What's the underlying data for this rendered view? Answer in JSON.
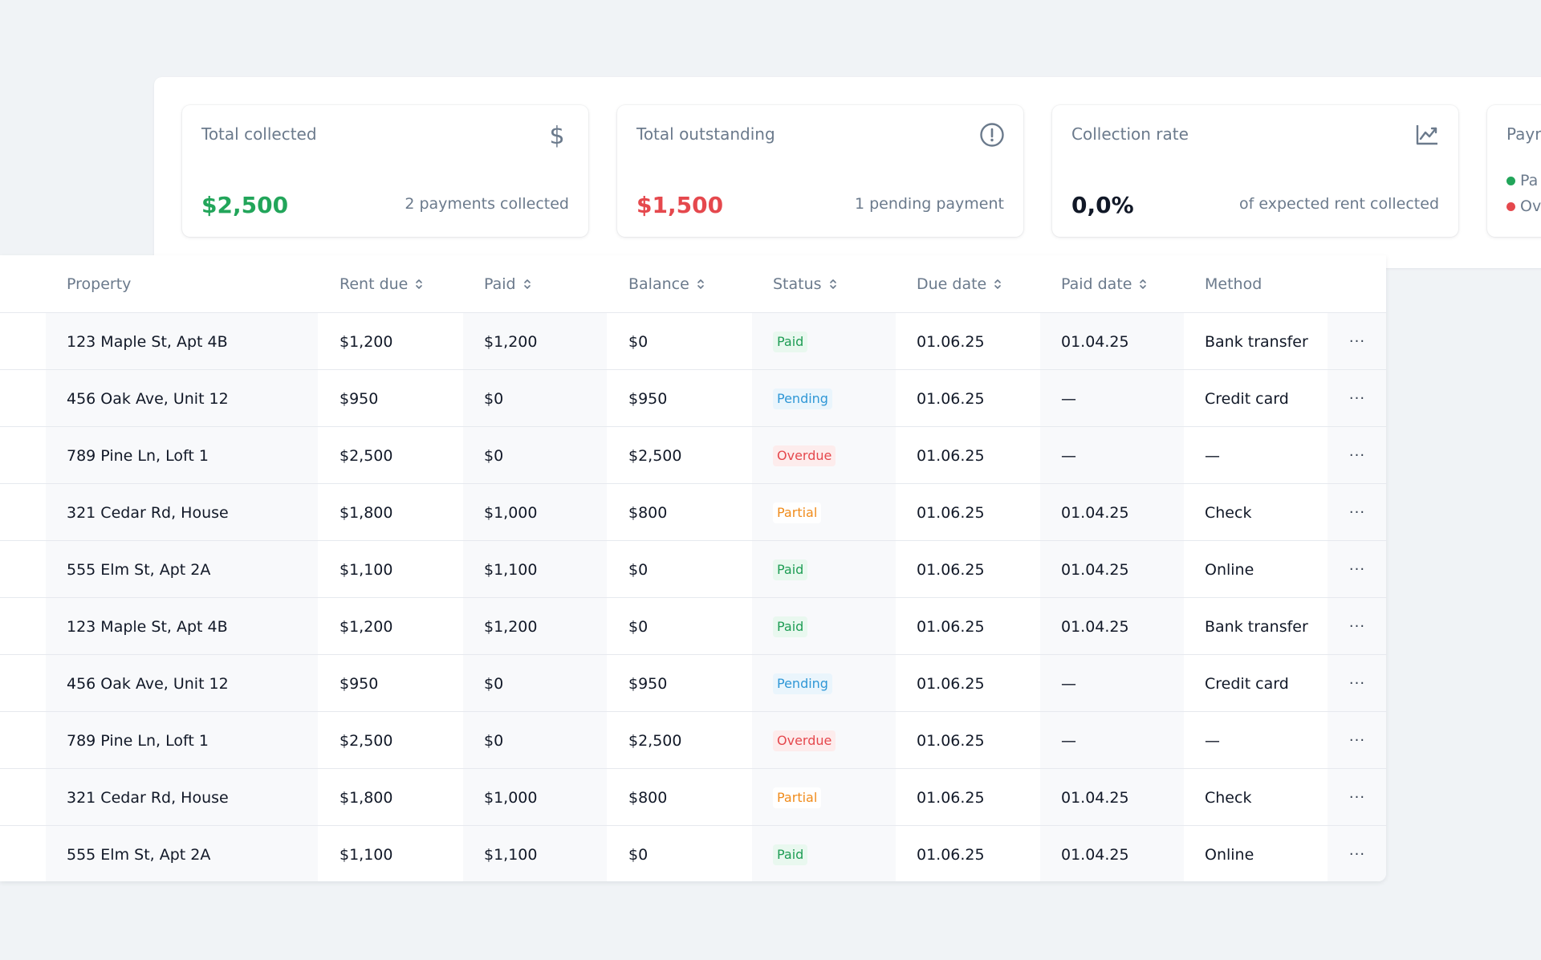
{
  "colors": {
    "green": "#22a55a",
    "red": "#e5484d",
    "blue": "#2f97d6",
    "orange": "#f08c1c",
    "muted": "#6b7a8c"
  },
  "summary": {
    "cards": [
      {
        "title": "Total collected",
        "icon": "dollar-icon",
        "value": "$2,500",
        "value_color": "#22a55a",
        "subtitle": "2 payments collected"
      },
      {
        "title": "Total outstanding",
        "icon": "alert-circle-icon",
        "value": "$1,500",
        "value_color": "#e5484d",
        "subtitle": "1 pending payment"
      },
      {
        "title": "Collection rate",
        "icon": "trend-chart-icon",
        "value": "0,0%",
        "value_color": "#111827",
        "subtitle": "of expected rent collected"
      }
    ],
    "partial_card": {
      "title": "Payr",
      "legend": [
        {
          "label": "Pa",
          "color": "#22a55a"
        },
        {
          "label": "Ov",
          "color": "#e5484d"
        }
      ]
    }
  },
  "table": {
    "headers": [
      "Property",
      "Rent due",
      "Paid",
      "Balance",
      "Status",
      "Due date",
      "Paid date",
      "Method"
    ],
    "sortable": [
      false,
      true,
      true,
      true,
      true,
      true,
      true,
      false
    ],
    "more_label": "···",
    "rows": [
      {
        "property": "123 Maple St, Apt 4B",
        "rent_due": "$1,200",
        "paid": "$1,200",
        "balance": "$0",
        "status": "Paid",
        "status_type": "paid",
        "due_date": "01.06.25",
        "paid_date": "01.04.25",
        "method": "Bank transfer"
      },
      {
        "property": "456 Oak Ave, Unit 12",
        "rent_due": "$950",
        "paid": "$0",
        "balance": "$950",
        "status": "Pending",
        "status_type": "pending",
        "due_date": "01.06.25",
        "paid_date": "—",
        "method": "Credit card"
      },
      {
        "property": "789 Pine Ln, Loft 1",
        "rent_due": "$2,500",
        "paid": "$0",
        "balance": "$2,500",
        "status": "Overdue",
        "status_type": "overdue",
        "due_date": "01.06.25",
        "paid_date": "—",
        "method": "—"
      },
      {
        "property": "321 Cedar Rd, House",
        "rent_due": "$1,800",
        "paid": "$1,000",
        "balance": "$800",
        "status": "Partial",
        "status_type": "partial",
        "due_date": "01.06.25",
        "paid_date": "01.04.25",
        "method": "Check"
      },
      {
        "property": "555 Elm St, Apt 2A",
        "rent_due": "$1,100",
        "paid": "$1,100",
        "balance": "$0",
        "status": "Paid",
        "status_type": "paid",
        "due_date": "01.06.25",
        "paid_date": "01.04.25",
        "method": "Online"
      },
      {
        "property": "123 Maple St, Apt 4B",
        "rent_due": "$1,200",
        "paid": "$1,200",
        "balance": "$0",
        "status": "Paid",
        "status_type": "paid",
        "due_date": "01.06.25",
        "paid_date": "01.04.25",
        "method": "Bank transfer"
      },
      {
        "property": "456 Oak Ave, Unit 12",
        "rent_due": "$950",
        "paid": "$0",
        "balance": "$950",
        "status": "Pending",
        "status_type": "pending",
        "due_date": "01.06.25",
        "paid_date": "—",
        "method": "Credit card"
      },
      {
        "property": "789 Pine Ln, Loft 1",
        "rent_due": "$2,500",
        "paid": "$0",
        "balance": "$2,500",
        "status": "Overdue",
        "status_type": "overdue",
        "due_date": "01.06.25",
        "paid_date": "—",
        "method": "—"
      },
      {
        "property": "321 Cedar Rd, House",
        "rent_due": "$1,800",
        "paid": "$1,000",
        "balance": "$800",
        "status": "Partial",
        "status_type": "partial",
        "due_date": "01.06.25",
        "paid_date": "01.04.25",
        "method": "Check"
      },
      {
        "property": "555 Elm St, Apt 2A",
        "rent_due": "$1,100",
        "paid": "$1,100",
        "balance": "$0",
        "status": "Paid",
        "status_type": "paid",
        "due_date": "01.06.25",
        "paid_date": "01.04.25",
        "method": "Online"
      }
    ]
  }
}
